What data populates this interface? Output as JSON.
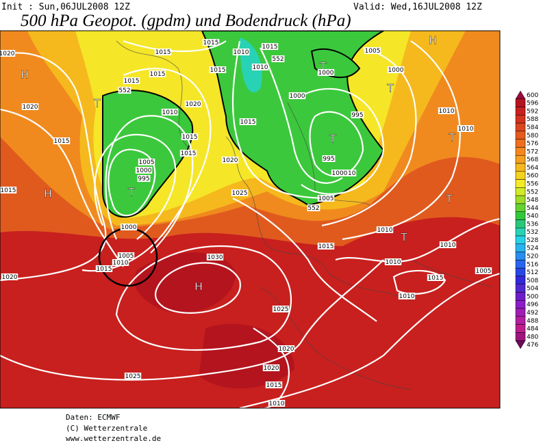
{
  "header": {
    "init": "Init : Sun,06JUL2008 12Z",
    "valid": "Valid: Wed,16JUL2008 12Z",
    "title": "500 hPa Geopot. (gpdm) und Bodendruck (hPa)"
  },
  "legend": {
    "levels": [
      600,
      596,
      592,
      588,
      584,
      580,
      576,
      572,
      568,
      564,
      560,
      556,
      552,
      548,
      544,
      540,
      536,
      532,
      528,
      524,
      520,
      516,
      512,
      508,
      504,
      500,
      496,
      492,
      488,
      484,
      480,
      476
    ],
    "colors": [
      "#9b0a3c",
      "#b4141e",
      "#c8201e",
      "#d2321e",
      "#dc461e",
      "#e65a1e",
      "#f06e1e",
      "#f5871e",
      "#f5a01e",
      "#f5b91e",
      "#f5d21e",
      "#f5eb28",
      "#d2eb28",
      "#a0dc28",
      "#64d232",
      "#32c83c",
      "#28c878",
      "#28d2b4",
      "#28d2e6",
      "#28b4f0",
      "#288cf0",
      "#2864f0",
      "#2846e6",
      "#3228dc",
      "#5028d2",
      "#6e1ec8",
      "#8c1ec8",
      "#a01eb4",
      "#b41ea0",
      "#be1e8c",
      "#a0147d",
      "#6e0a5a"
    ]
  },
  "map": {
    "labels": [
      "T",
      "T",
      "T",
      "T",
      "T",
      "T",
      "T",
      "T",
      "H",
      "H",
      "H",
      "H",
      "1015",
      "1015",
      "1010",
      "1015",
      "1005",
      "1000",
      "1000",
      "1010",
      "1015",
      "1015",
      "1015",
      "1020",
      "1020",
      "1010",
      "1020",
      "1015",
      "1000",
      "995",
      "1010",
      "1010",
      "1015",
      "1015",
      "1015",
      "1005",
      "1000",
      "995",
      "1020",
      "995",
      "1010",
      "1000",
      "1025",
      "1005",
      "1015",
      "1000",
      "1005",
      "1010",
      "1015",
      "1020",
      "1030",
      "1010",
      "1015",
      "1010",
      "1010",
      "1015",
      "1010",
      "1005",
      "1025",
      "1020",
      "1025",
      "1020",
      "1015",
      "1010",
      "552",
      "552",
      "552"
    ]
  },
  "footer": [
    "Daten: ECMWF",
    "(C) Wetterzentrale",
    "www.wetterzentrale.de"
  ]
}
